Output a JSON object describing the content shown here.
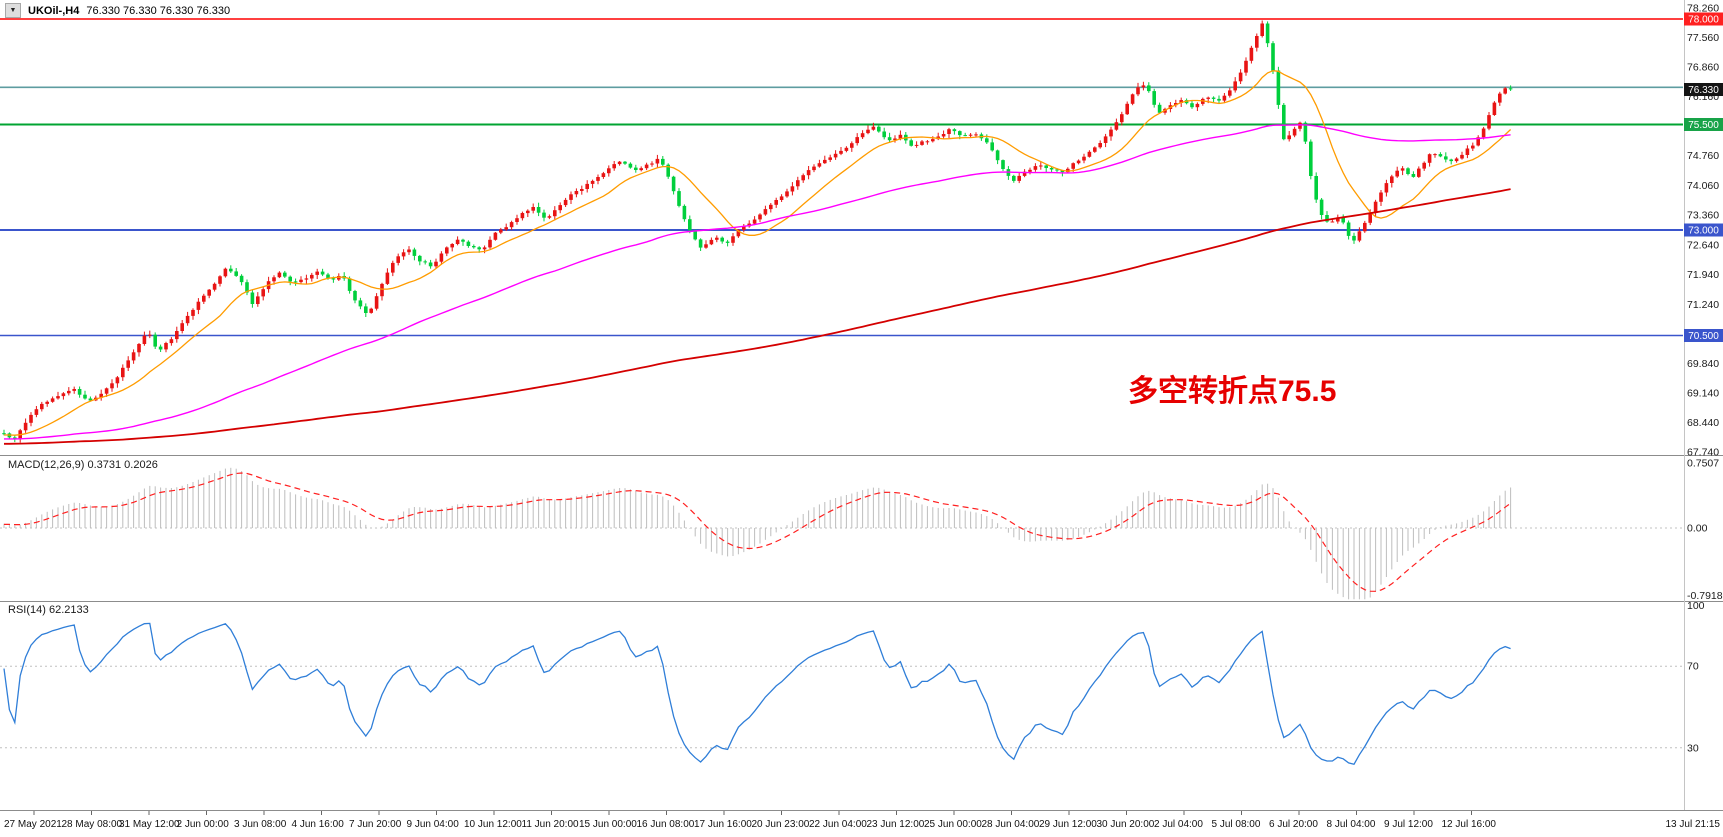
{
  "header": {
    "collapse_icon": "▼",
    "symbol_label": "UKOil-,H4",
    "ohlc_text": "76.330 76.330 76.330 76.330"
  },
  "annotation": {
    "text": "多空转折点75.5",
    "color": "#e60000"
  },
  "colors": {
    "background": "#ffffff",
    "bull": "#e81414",
    "bear": "#00cf3c",
    "macd_hist": "#bdbdbd",
    "macd_signal": "#ff2020",
    "rsi_line": "#2f7ed8",
    "level_dotted": "#c0c0c0",
    "separator": "#8c8c8c",
    "axis_border": "#c4c4c4",
    "axis_text": "#1a1a1a",
    "time_text": "#111111"
  },
  "price_axis": {
    "labels": [
      "78.260",
      "77.560",
      "76.860",
      "76.160",
      "74.760",
      "74.060",
      "73.360",
      "72.640",
      "71.940",
      "71.240",
      "69.840",
      "69.140",
      "68.440",
      "67.740"
    ],
    "current_badge": {
      "label": "76.330",
      "bg": "#141414"
    }
  },
  "hlines": [
    {
      "price": 78.0,
      "color": "#ff0000",
      "width": 1.6,
      "label": "78.000",
      "badge_bg": "#ff2020",
      "name": "resistance-line-78"
    },
    {
      "price": 76.38,
      "color": "#5e9ca0",
      "width": 1.6,
      "label": null,
      "badge_bg": null,
      "name": "teal-level-line"
    },
    {
      "price": 75.5,
      "color": "#00a432",
      "width": 2,
      "label": "75.500",
      "badge_bg": "#18a348",
      "name": "pivot-line-75-5"
    },
    {
      "price": 73.0,
      "color": "#3a55cc",
      "width": 2,
      "label": "73.000",
      "badge_bg": "#3a55cc",
      "name": "support-line-73"
    },
    {
      "price": 70.5,
      "color": "#3a55cc",
      "width": 1.6,
      "label": "70.500",
      "badge_bg": "#3a55cc",
      "name": "support-line-70-5"
    }
  ],
  "time_axis": {
    "labels": [
      "27 May 2021",
      "28 May 08:00",
      "31 May 12:00",
      "2 Jun 00:00",
      "3 Jun 08:00",
      "4 Jun 16:00",
      "7 Jun 20:00",
      "9 Jun 04:00",
      "10 Jun 12:00",
      "11 Jun 20:00",
      "15 Jun 00:00",
      "16 Jun 08:00",
      "17 Jun 16:00",
      "20 Jun 23:00",
      "22 Jun 04:00",
      "23 Jun 12:00",
      "25 Jun 00:00",
      "28 Jun 04:00",
      "29 Jun 12:00",
      "30 Jun 20:00",
      "2 Jul 04:00",
      "5 Jul 08:00",
      "6 Jul 20:00",
      "8 Jul 04:00",
      "9 Jul 12:00",
      "12 Jul 16:00",
      "13 Jul 21:15"
    ]
  },
  "macd_panel": {
    "label": "MACD(12,26,9) 0.3731 0.2026",
    "axis_labels": [
      "0.7507",
      "0.00",
      "-0.7918"
    ]
  },
  "rsi_panel": {
    "label": "RSI(14) 62.2133",
    "axis_labels": [
      "100",
      "70",
      "30"
    ]
  },
  "chart_data": {
    "type": "candlestick",
    "symbol": "UKOil-",
    "timeframe": "H4",
    "title": "UKOil-,H4 76.330 76.330 76.330 76.330",
    "current_price": 76.33,
    "ohlc_display": [
      76.33,
      76.33,
      76.33,
      76.33
    ],
    "ylim": [
      67.74,
      78.26
    ],
    "price_axis_step": 0.7,
    "visible_bars": 280,
    "key_levels": [
      78.0,
      76.38,
      75.5,
      73.0,
      70.5
    ],
    "annotation": "多空转折点75.5",
    "x_axis_labels": [
      "27 May 2021",
      "28 May 08:00",
      "31 May 12:00",
      "2 Jun 00:00",
      "3 Jun 08:00",
      "4 Jun 16:00",
      "7 Jun 20:00",
      "9 Jun 04:00",
      "10 Jun 12:00",
      "11 Jun 20:00",
      "15 Jun 00:00",
      "16 Jun 08:00",
      "17 Jun 16:00",
      "20 Jun 23:00",
      "22 Jun 04:00",
      "23 Jun 12:00",
      "25 Jun 00:00",
      "28 Jun 04:00",
      "29 Jun 12:00",
      "30 Jun 20:00",
      "2 Jul 04:00",
      "5 Jul 08:00",
      "6 Jul 20:00",
      "8 Jul 04:00",
      "9 Jul 12:00",
      "12 Jul 16:00",
      "13 Jul 21:15"
    ],
    "close_path": [
      [
        0,
        68.25
      ],
      [
        14,
        68.0
      ],
      [
        28,
        68.55
      ],
      [
        42,
        68.9
      ],
      [
        58,
        69.05
      ],
      [
        72,
        69.25
      ],
      [
        88,
        68.95
      ],
      [
        104,
        69.15
      ],
      [
        118,
        69.55
      ],
      [
        132,
        70.05
      ],
      [
        148,
        70.6
      ],
      [
        158,
        70.1
      ],
      [
        172,
        70.45
      ],
      [
        186,
        70.9
      ],
      [
        200,
        71.35
      ],
      [
        214,
        71.7
      ],
      [
        226,
        72.1
      ],
      [
        240,
        71.85
      ],
      [
        252,
        71.25
      ],
      [
        266,
        71.7
      ],
      [
        278,
        72.0
      ],
      [
        292,
        71.75
      ],
      [
        306,
        71.85
      ],
      [
        318,
        72.05
      ],
      [
        330,
        71.8
      ],
      [
        342,
        71.95
      ],
      [
        354,
        71.35
      ],
      [
        368,
        70.95
      ],
      [
        382,
        71.7
      ],
      [
        394,
        72.3
      ],
      [
        408,
        72.55
      ],
      [
        420,
        72.25
      ],
      [
        432,
        72.15
      ],
      [
        446,
        72.55
      ],
      [
        458,
        72.8
      ],
      [
        470,
        72.6
      ],
      [
        484,
        72.55
      ],
      [
        496,
        72.95
      ],
      [
        508,
        73.1
      ],
      [
        520,
        73.35
      ],
      [
        534,
        73.55
      ],
      [
        546,
        73.25
      ],
      [
        560,
        73.6
      ],
      [
        572,
        73.85
      ],
      [
        586,
        74.05
      ],
      [
        598,
        74.25
      ],
      [
        610,
        74.5
      ],
      [
        622,
        74.65
      ],
      [
        634,
        74.4
      ],
      [
        648,
        74.55
      ],
      [
        660,
        74.7
      ],
      [
        670,
        74.15
      ],
      [
        680,
        73.5
      ],
      [
        692,
        72.9
      ],
      [
        702,
        72.55
      ],
      [
        714,
        72.85
      ],
      [
        726,
        72.65
      ],
      [
        738,
        73.0
      ],
      [
        750,
        73.15
      ],
      [
        762,
        73.4
      ],
      [
        776,
        73.7
      ],
      [
        788,
        73.95
      ],
      [
        800,
        74.25
      ],
      [
        812,
        74.5
      ],
      [
        824,
        74.65
      ],
      [
        838,
        74.85
      ],
      [
        850,
        75.0
      ],
      [
        862,
        75.3
      ],
      [
        874,
        75.45
      ],
      [
        888,
        75.1
      ],
      [
        900,
        75.25
      ],
      [
        912,
        74.95
      ],
      [
        924,
        75.1
      ],
      [
        938,
        75.2
      ],
      [
        950,
        75.4
      ],
      [
        962,
        75.2
      ],
      [
        974,
        75.3
      ],
      [
        988,
        75.05
      ],
      [
        1000,
        74.55
      ],
      [
        1012,
        74.15
      ],
      [
        1024,
        74.35
      ],
      [
        1038,
        74.55
      ],
      [
        1050,
        74.45
      ],
      [
        1062,
        74.35
      ],
      [
        1074,
        74.6
      ],
      [
        1088,
        74.8
      ],
      [
        1100,
        75.05
      ],
      [
        1112,
        75.4
      ],
      [
        1124,
        75.85
      ],
      [
        1136,
        76.35
      ],
      [
        1146,
        76.45
      ],
      [
        1158,
        75.75
      ],
      [
        1170,
        75.95
      ],
      [
        1182,
        76.1
      ],
      [
        1194,
        75.9
      ],
      [
        1206,
        76.15
      ],
      [
        1218,
        76.05
      ],
      [
        1230,
        76.3
      ],
      [
        1242,
        76.8
      ],
      [
        1252,
        77.35
      ],
      [
        1262,
        77.9
      ],
      [
        1270,
        77.2
      ],
      [
        1277,
        76.2
      ],
      [
        1284,
        75.1
      ],
      [
        1292,
        75.35
      ],
      [
        1302,
        75.6
      ],
      [
        1312,
        74.1
      ],
      [
        1320,
        73.4
      ],
      [
        1330,
        73.15
      ],
      [
        1340,
        73.35
      ],
      [
        1352,
        72.65
      ],
      [
        1362,
        73.05
      ],
      [
        1372,
        73.5
      ],
      [
        1382,
        73.95
      ],
      [
        1392,
        74.3
      ],
      [
        1402,
        74.5
      ],
      [
        1412,
        74.2
      ],
      [
        1422,
        74.55
      ],
      [
        1432,
        74.85
      ],
      [
        1442,
        74.7
      ],
      [
        1452,
        74.6
      ],
      [
        1462,
        74.8
      ],
      [
        1472,
        75.0
      ],
      [
        1482,
        75.3
      ],
      [
        1492,
        75.9
      ],
      [
        1502,
        76.35
      ],
      [
        1510,
        76.4
      ],
      [
        1515,
        76.33
      ]
    ],
    "prehistory_path": [
      [
        0,
        67.6
      ],
      [
        40,
        67.95
      ],
      [
        80,
        67.7
      ],
      [
        120,
        68.05
      ],
      [
        160,
        67.85
      ],
      [
        200,
        68.15
      ],
      [
        230,
        67.9
      ],
      [
        260,
        68.2
      ]
    ],
    "moving_averages": [
      {
        "name": "fast",
        "period": 13,
        "color": "#ff9c00",
        "width": 1.3
      },
      {
        "name": "medium",
        "period": 75,
        "color": "#ff00ff",
        "width": 1.4
      },
      {
        "name": "slow",
        "period": 250,
        "color": "#d40000",
        "width": 1.8
      }
    ],
    "indicators": [
      {
        "name": "MACD",
        "params": [
          12,
          26,
          9
        ],
        "current_values": [
          0.3731,
          0.2026
        ],
        "axis_max": 0.7507,
        "axis_min": -0.7918
      },
      {
        "name": "RSI",
        "params": [
          14
        ],
        "current_value": 62.2133,
        "levels": [
          100,
          70,
          30
        ]
      }
    ]
  }
}
